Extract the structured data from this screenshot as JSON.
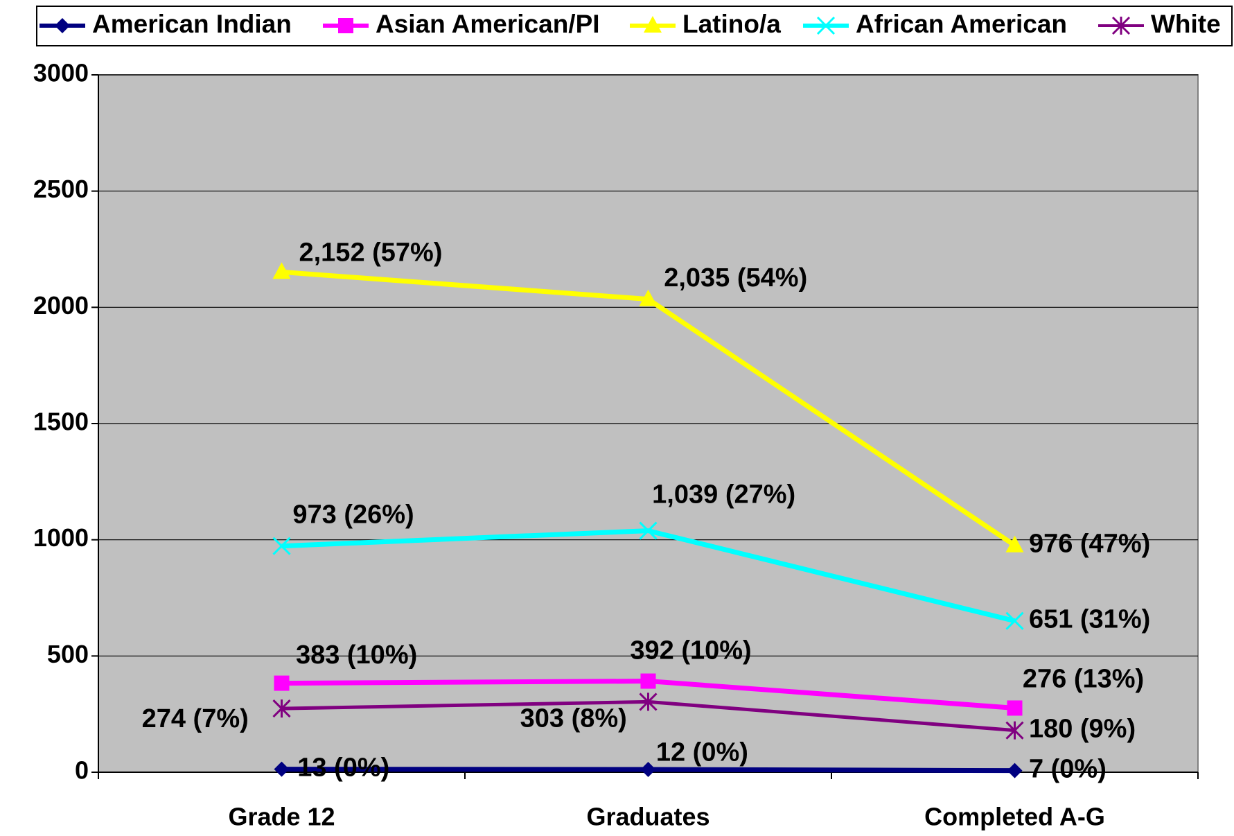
{
  "chart_data": {
    "type": "line",
    "categories": [
      "Grade 12",
      "Graduates",
      "Completed A-G"
    ],
    "series": [
      {
        "name": "American Indian",
        "color": "#000080",
        "marker": "diamond",
        "values": [
          13,
          12,
          7
        ],
        "value_labels": [
          "13 (0%)",
          "12 (0%)",
          "7 (0%)"
        ]
      },
      {
        "name": "Asian American/PI",
        "color": "#ff00ff",
        "marker": "square",
        "values": [
          383,
          392,
          276
        ],
        "value_labels": [
          "383 (10%)",
          "392 (10%)",
          "276 (13%)"
        ]
      },
      {
        "name": "Latino/a",
        "color": "#ffff00",
        "marker": "triangle",
        "values": [
          2152,
          2035,
          976
        ],
        "value_labels": [
          "2,152 (57%)",
          "2,035 (54%)",
          "976 (47%)"
        ]
      },
      {
        "name": "African American",
        "color": "#00ffff",
        "marker": "x",
        "values": [
          973,
          1039,
          651
        ],
        "value_labels": [
          "973 (26%)",
          "1,039 (27%)",
          "651 (31%)"
        ]
      },
      {
        "name": "White",
        "color": "#800080",
        "marker": "star",
        "values": [
          274,
          303,
          180
        ],
        "value_labels": [
          "274 (7%)",
          "303 (8%)",
          "180 (9%)"
        ]
      }
    ],
    "ylim": [
      0,
      3000
    ],
    "yticks": [
      0,
      500,
      1000,
      1500,
      2000,
      2500,
      3000
    ],
    "grid": true,
    "legend": "top"
  }
}
